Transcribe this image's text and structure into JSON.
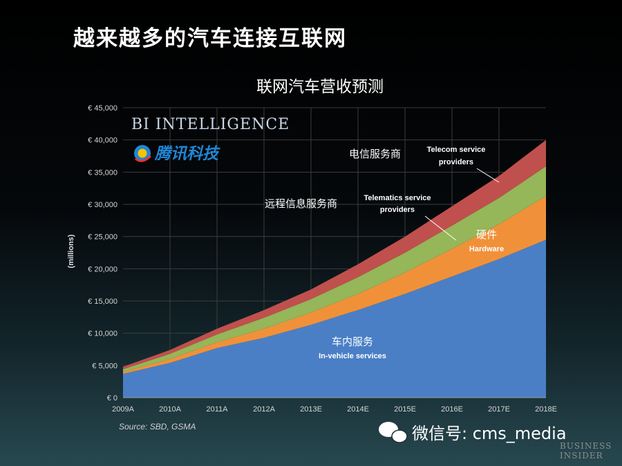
{
  "slide_title": "越来越多的汽车连接互联网",
  "source": "Source: SBD, GSMA",
  "logos": {
    "bi_intelligence": "BI INTELLIGENCE",
    "tencent": "腾讯科技",
    "wechat": "微信号: cms_media",
    "business_insider_line1": "BUSINESS",
    "business_insider_line2": "INSIDER"
  },
  "chart_data": {
    "type": "area",
    "stacked": true,
    "title": "联网汽车营收预测",
    "ylabel": "(millions)",
    "xlabel": "",
    "ylim": [
      0,
      45000
    ],
    "yticks": [
      0,
      5000,
      10000,
      15000,
      20000,
      25000,
      30000,
      35000,
      40000,
      45000
    ],
    "ytick_labels": [
      "€ 0",
      "€ 5,000",
      "€ 10,000",
      "€ 15,000",
      "€ 20,000",
      "€ 25,000",
      "€ 30,000",
      "€ 35,000",
      "€ 40,000",
      "€ 45,000"
    ],
    "categories": [
      "2009A",
      "2010A",
      "2011A",
      "2012A",
      "2013E",
      "2014E",
      "2015E",
      "2016E",
      "2017E",
      "2018E"
    ],
    "grid": true,
    "series": [
      {
        "name": "In-vehicle services",
        "name_cn": "车内服务",
        "color": "#4a7fc6",
        "values": [
          3700,
          5400,
          7700,
          9300,
          11300,
          13600,
          16100,
          18800,
          21500,
          24500
        ]
      },
      {
        "name": "Hardware",
        "name_cn": "硬件",
        "color": "#f0913a",
        "values": [
          300,
          600,
          900,
          1400,
          1900,
          2500,
          3300,
          4300,
          5400,
          6800
        ]
      },
      {
        "name": "Telematics service providers",
        "name_cn": "远程信息服务商",
        "color": "#95b659",
        "values": [
          400,
          800,
          1200,
          1700,
          2100,
          2600,
          3100,
          3600,
          4100,
          4600
        ]
      },
      {
        "name": "Telecom service providers",
        "name_cn": "电信服务商",
        "color": "#c0504d",
        "values": [
          400,
          600,
          900,
          1200,
          1500,
          2000,
          2500,
          3000,
          3400,
          4100
        ]
      }
    ]
  }
}
